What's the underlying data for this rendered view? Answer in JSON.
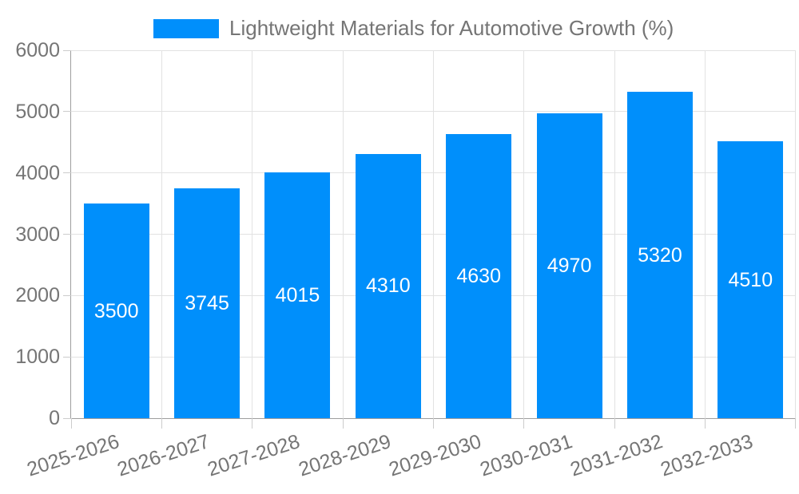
{
  "chart_data": {
    "type": "bar",
    "title": "Lightweight Materials for Automotive Growth (%)",
    "categories": [
      "2025-2026",
      "2026-2027",
      "2027-2028",
      "2028-2029",
      "2029-2030",
      "2030-2031",
      "2031-2032",
      "2032-2033"
    ],
    "values": [
      3500,
      3745,
      4015,
      4310,
      4630,
      4970,
      5320,
      4510
    ],
    "xlabel": "",
    "ylabel": "",
    "ylim": [
      0,
      6000
    ],
    "ytick_interval": 1000,
    "ytick_labels": [
      "0",
      "1000",
      "2000",
      "3000",
      "4000",
      "5000",
      "6000"
    ],
    "legend_position": "top",
    "grid": true,
    "bar_labels_inside": true,
    "colors": {
      "bar": "#008FFB",
      "bar_label": "#ffffff",
      "axis_text": "#757575",
      "gridline": "#e2e2e2",
      "axis_line": "#9e9e9e",
      "tick": "#cccccc",
      "background": "#ffffff"
    }
  }
}
